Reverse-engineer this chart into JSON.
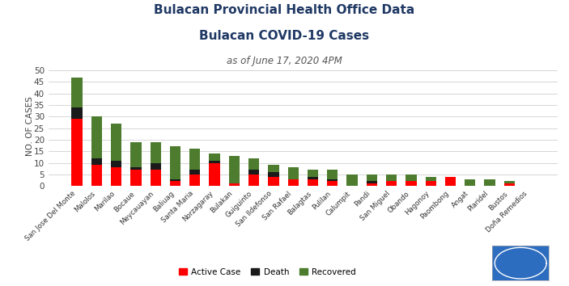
{
  "title_line1": "Bulacan Provincial Health Office Data",
  "title_line2": "Bulacan COVID-19 Cases",
  "subtitle": "as of June 17, 2020 4PM",
  "ylabel": "NO. OF CASES",
  "categories": [
    "San Jose Del Monte",
    "Malolos",
    "Marilao",
    "Bocaue",
    "Meycauayan",
    "Baliuag",
    "Santa Maria",
    "Norzagaray",
    "Bulakan",
    "Guiguinto",
    "San Ildefonso",
    "San Rafael",
    "Balagtas",
    "Pulilan",
    "Calumpit",
    "Pandi",
    "San Miguel",
    "Obando",
    "Hagonoy",
    "Paombong",
    "Angat",
    "Plaridel",
    "Bustos",
    "Doña Remedios"
  ],
  "active": [
    29,
    9,
    8,
    7,
    7,
    2,
    5,
    10,
    1,
    5,
    4,
    3,
    3,
    2,
    0,
    1,
    2,
    2,
    2,
    4,
    0,
    0,
    1,
    0
  ],
  "death": [
    5,
    3,
    3,
    1,
    3,
    1,
    2,
    1,
    0,
    2,
    2,
    0,
    1,
    1,
    0,
    1,
    0,
    0,
    0,
    0,
    0,
    0,
    0,
    0
  ],
  "recovered": [
    13,
    18,
    16,
    11,
    9,
    14,
    9,
    3,
    12,
    5,
    3,
    5,
    3,
    4,
    5,
    3,
    3,
    3,
    2,
    0,
    3,
    3,
    1,
    0
  ],
  "color_active": "#FF0000",
  "color_death": "#1a1a1a",
  "color_recovered": "#4d7c2e",
  "background_color": "#ffffff",
  "grid_color": "#d0d0d0",
  "title_color": "#1f3864",
  "subtitle_color": "#555555",
  "ylim": [
    0,
    52
  ],
  "yticks": [
    0,
    5,
    10,
    15,
    20,
    25,
    30,
    35,
    40,
    45,
    50
  ],
  "title1_fontsize": 11,
  "title2_fontsize": 11,
  "subtitle_fontsize": 8.5,
  "bar_width": 0.55,
  "logo_color": "#2d6dbf"
}
